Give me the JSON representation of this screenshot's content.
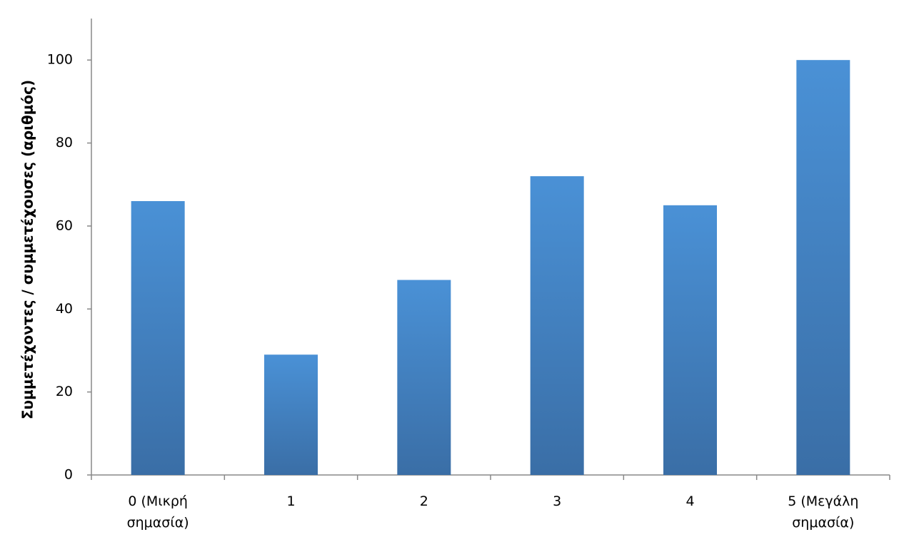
{
  "chart_data": {
    "type": "bar",
    "y_label": "Συμμετέχοντες / συμμετέχουσες (αριθμός)",
    "categories": [
      "0 (Μικρή σημασία)",
      "1",
      "2",
      "3",
      "4",
      "5 (Μεγάλη σημασία)"
    ],
    "values": [
      66,
      29,
      47,
      72,
      65,
      100
    ],
    "color": "#4a91d6",
    "ylim": [
      0,
      110
    ],
    "yticks": [
      0,
      20,
      40,
      60,
      80,
      100
    ],
    "grid": false
  }
}
